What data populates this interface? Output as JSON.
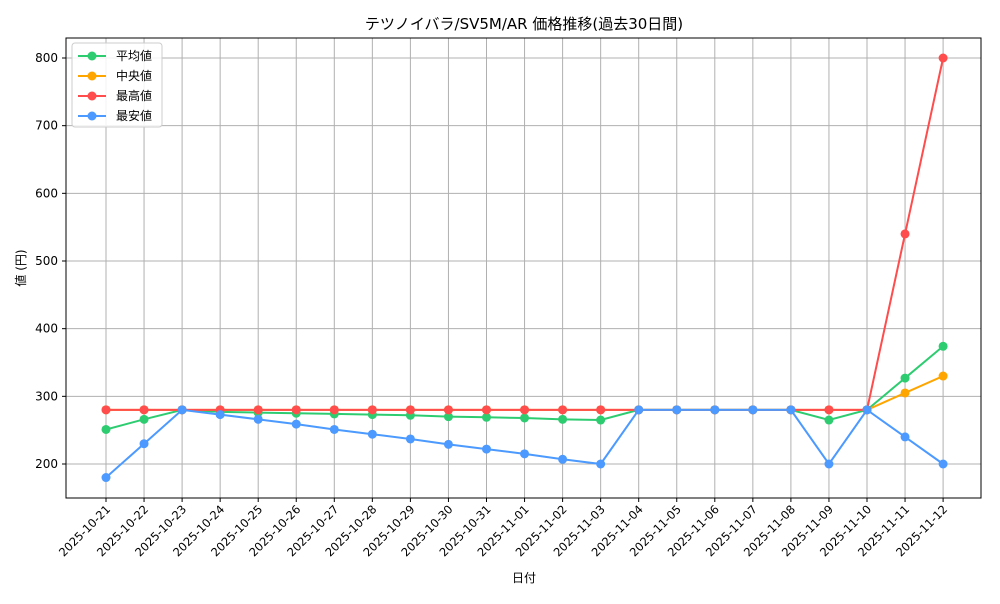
{
  "chart_data": {
    "type": "line",
    "title": "テツノイバラ/SV5M/AR 価格推移(過去30日間)",
    "xlabel": "日付",
    "ylabel": "値 (円)",
    "ylim": [
      150,
      830
    ],
    "yticks": [
      200,
      300,
      400,
      500,
      600,
      700,
      800
    ],
    "grid": true,
    "legend_position": "upper left",
    "categories": [
      "2025-10-21",
      "2025-10-22",
      "2025-10-23",
      "2025-10-24",
      "2025-10-25",
      "2025-10-26",
      "2025-10-27",
      "2025-10-28",
      "2025-10-29",
      "2025-10-30",
      "2025-10-31",
      "2025-11-01",
      "2025-11-02",
      "2025-11-03",
      "2025-11-04",
      "2025-11-05",
      "2025-11-06",
      "2025-11-07",
      "2025-11-08",
      "2025-11-09",
      "2025-11-10",
      "2025-11-11",
      "2025-11-12"
    ],
    "series": [
      {
        "name": "平均値",
        "color": "#2ecc71",
        "values": [
          251,
          266,
          280,
          277,
          276,
          275,
          274,
          273,
          272,
          270,
          269,
          268,
          266,
          265,
          280,
          280,
          280,
          280,
          280,
          265,
          280,
          327,
          374
        ]
      },
      {
        "name": "中央値",
        "color": "#ffa500",
        "values": [
          280,
          280,
          280,
          280,
          280,
          280,
          280,
          280,
          280,
          280,
          280,
          280,
          280,
          280,
          280,
          280,
          280,
          280,
          280,
          280,
          280,
          305,
          330
        ]
      },
      {
        "name": "最高値",
        "color": "#ff4c4c",
        "values": [
          280,
          280,
          280,
          280,
          280,
          280,
          280,
          280,
          280,
          280,
          280,
          280,
          280,
          280,
          280,
          280,
          280,
          280,
          280,
          280,
          280,
          540,
          800
        ]
      },
      {
        "name": "最安値",
        "color": "#4c9aff",
        "values": [
          180,
          230,
          280,
          273,
          266,
          259,
          251,
          244,
          237,
          229,
          222,
          215,
          207,
          200,
          280,
          280,
          280,
          280,
          280,
          200,
          280,
          240,
          200
        ]
      }
    ]
  }
}
